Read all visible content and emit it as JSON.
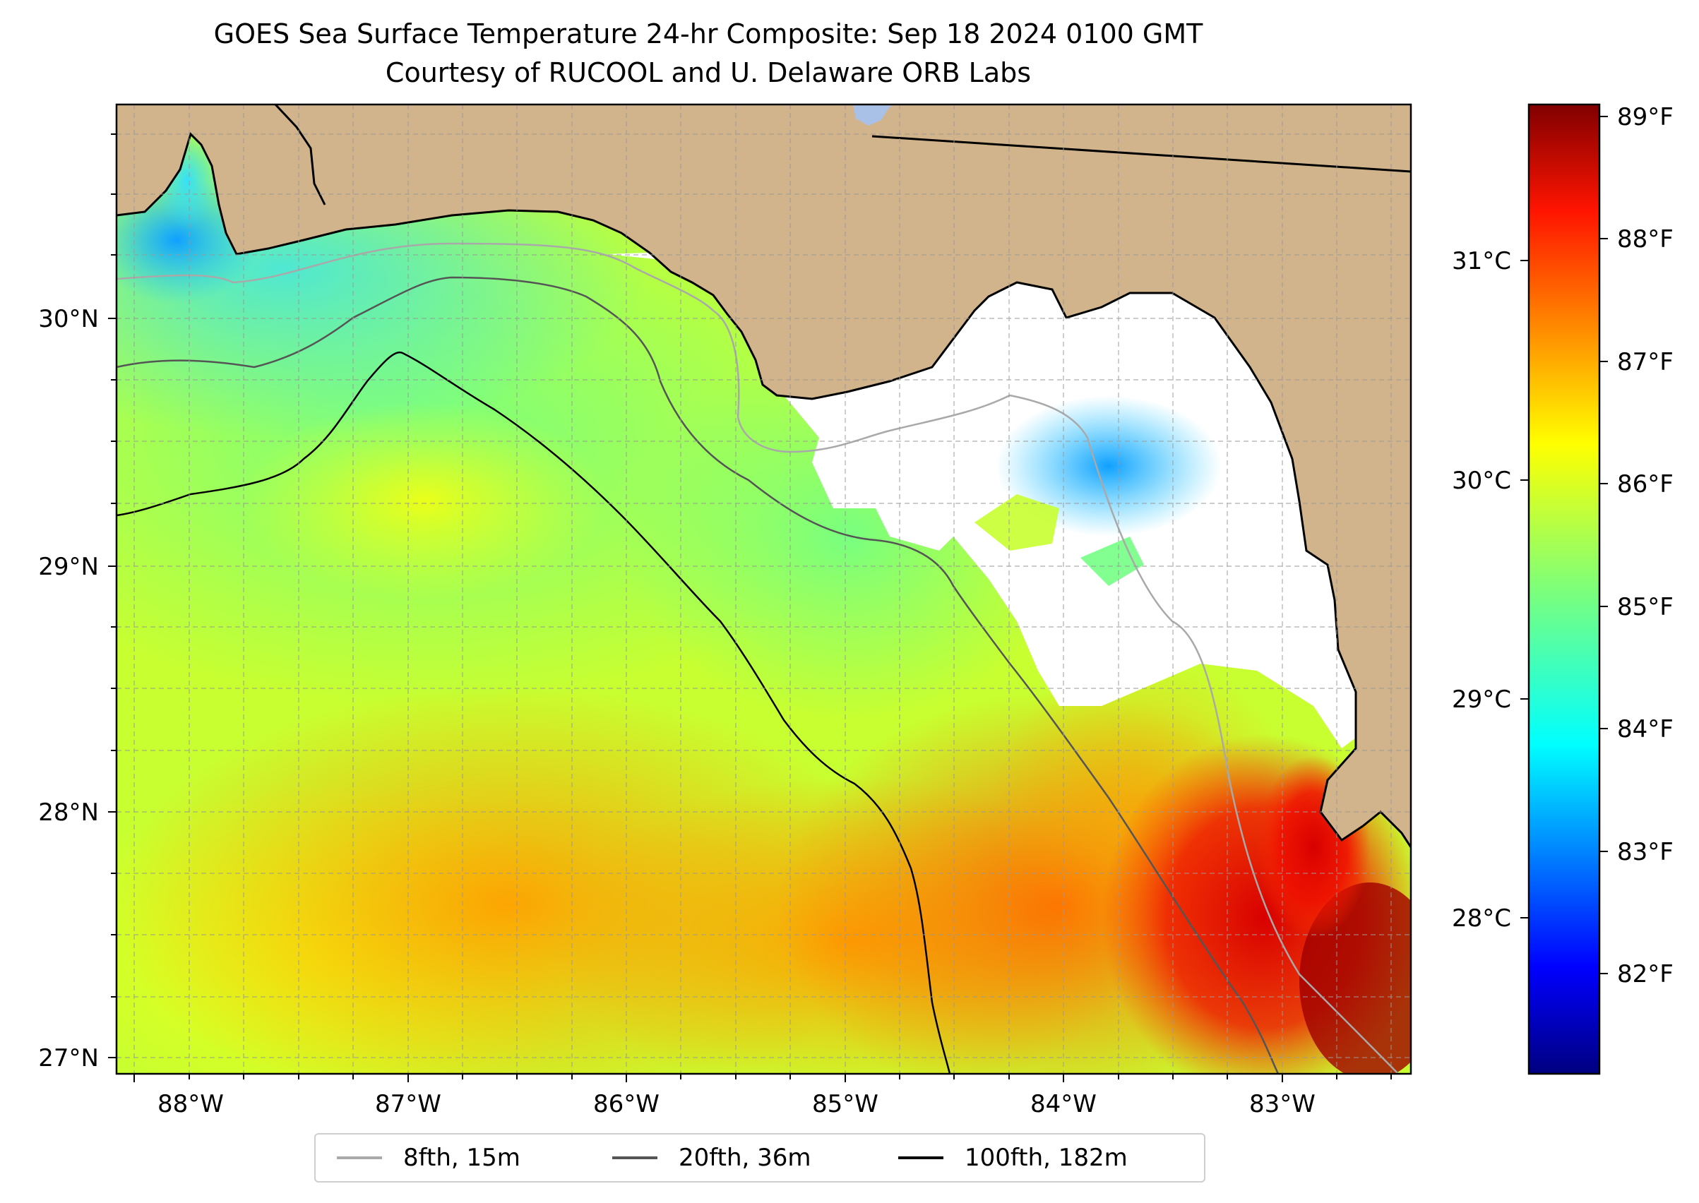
{
  "title": {
    "line1": "GOES Sea Surface Temperature 24-hr Composite: Sep 18 2024 0100 GMT",
    "line2": "Courtesy of RUCOOL and U. Delaware ORB Labs"
  },
  "map": {
    "lon_ticks": [
      "88°W",
      "87°W",
      "86°W",
      "85°W",
      "84°W",
      "83°W"
    ],
    "lat_ticks": [
      "30°N",
      "29°N",
      "28°N",
      "27°N"
    ],
    "colors": {
      "land": "#d2b48c",
      "no_data": "#ffffff",
      "lake": "#a9c1e6",
      "coast": "#000000"
    }
  },
  "colorbar": {
    "fahrenheit_ticks": [
      "89°F",
      "88°F",
      "87°F",
      "86°F",
      "85°F",
      "84°F",
      "83°F",
      "82°F"
    ],
    "celsius_ticks": [
      "31°C",
      "30°C",
      "29°C",
      "28°C"
    ],
    "colormap": "jet",
    "range_f": [
      81.2,
      89.1
    ]
  },
  "legend": {
    "items": [
      {
        "label": "8fth, 15m",
        "color": "#a9a9a9"
      },
      {
        "label": "20fth, 36m",
        "color": "#555555"
      },
      {
        "label": "100fth, 182m",
        "color": "#000000"
      }
    ]
  }
}
